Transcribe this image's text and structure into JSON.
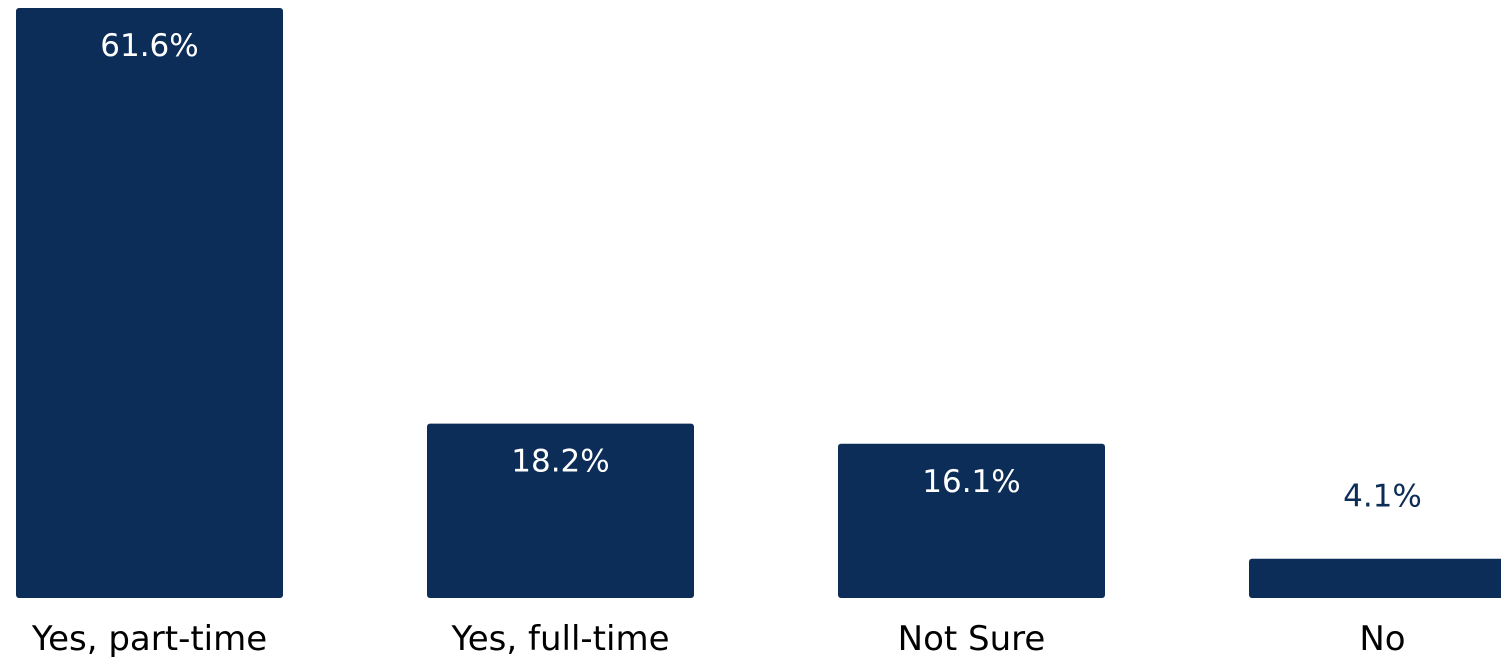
{
  "chart_data": {
    "type": "bar",
    "categories": [
      "Yes, part-time",
      "Yes, full-time",
      "Not Sure",
      "No"
    ],
    "values": [
      61.6,
      18.2,
      16.1,
      4.1
    ],
    "data_labels": [
      "61.6%",
      "18.2%",
      "16.1%",
      "4.1%"
    ],
    "title": "",
    "xlabel": "",
    "ylabel": "",
    "ylim": [
      0,
      61.6
    ],
    "grid": false,
    "legend": "none",
    "bar_color": "#0c2d57",
    "label_inside_color": "#ffffff",
    "label_outside_color": "#0c2d57"
  }
}
